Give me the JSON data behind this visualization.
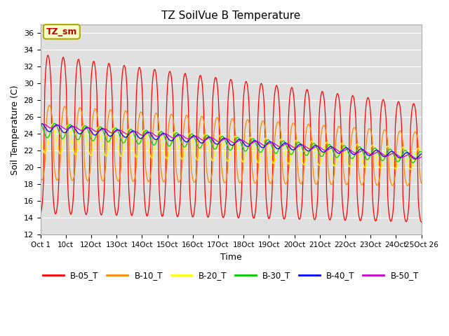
{
  "title": "TZ SoilVue B Temperature",
  "xlabel": "Time",
  "ylabel": "Soil Temperature (C)",
  "ylim": [
    12,
    37
  ],
  "yticks": [
    12,
    14,
    16,
    18,
    20,
    22,
    24,
    26,
    28,
    30,
    32,
    34,
    36
  ],
  "bg_color": "#e0e0e0",
  "annotation_text": "TZ_sm",
  "annotation_color": "#bb0000",
  "annotation_bg": "#ffffcc",
  "annotation_border": "#aaaa00",
  "series_colors": {
    "B-05_T": "#ff0000",
    "B-10_T": "#ff8800",
    "B-20_T": "#ffff00",
    "B-30_T": "#00cc00",
    "B-40_T": "#0000ff",
    "B-50_T": "#cc00cc"
  },
  "xtick_labels": [
    "Oct 1",
    "10ct",
    "12Oct",
    "13Oct",
    "14Oct",
    "15Oct",
    "16Oct",
    "17Oct",
    "18Oct",
    "19Oct",
    "20Oct",
    "21Oct",
    "22Oct",
    "23Oct",
    "24Oct",
    "25Oct 26"
  ],
  "n_days": 25
}
